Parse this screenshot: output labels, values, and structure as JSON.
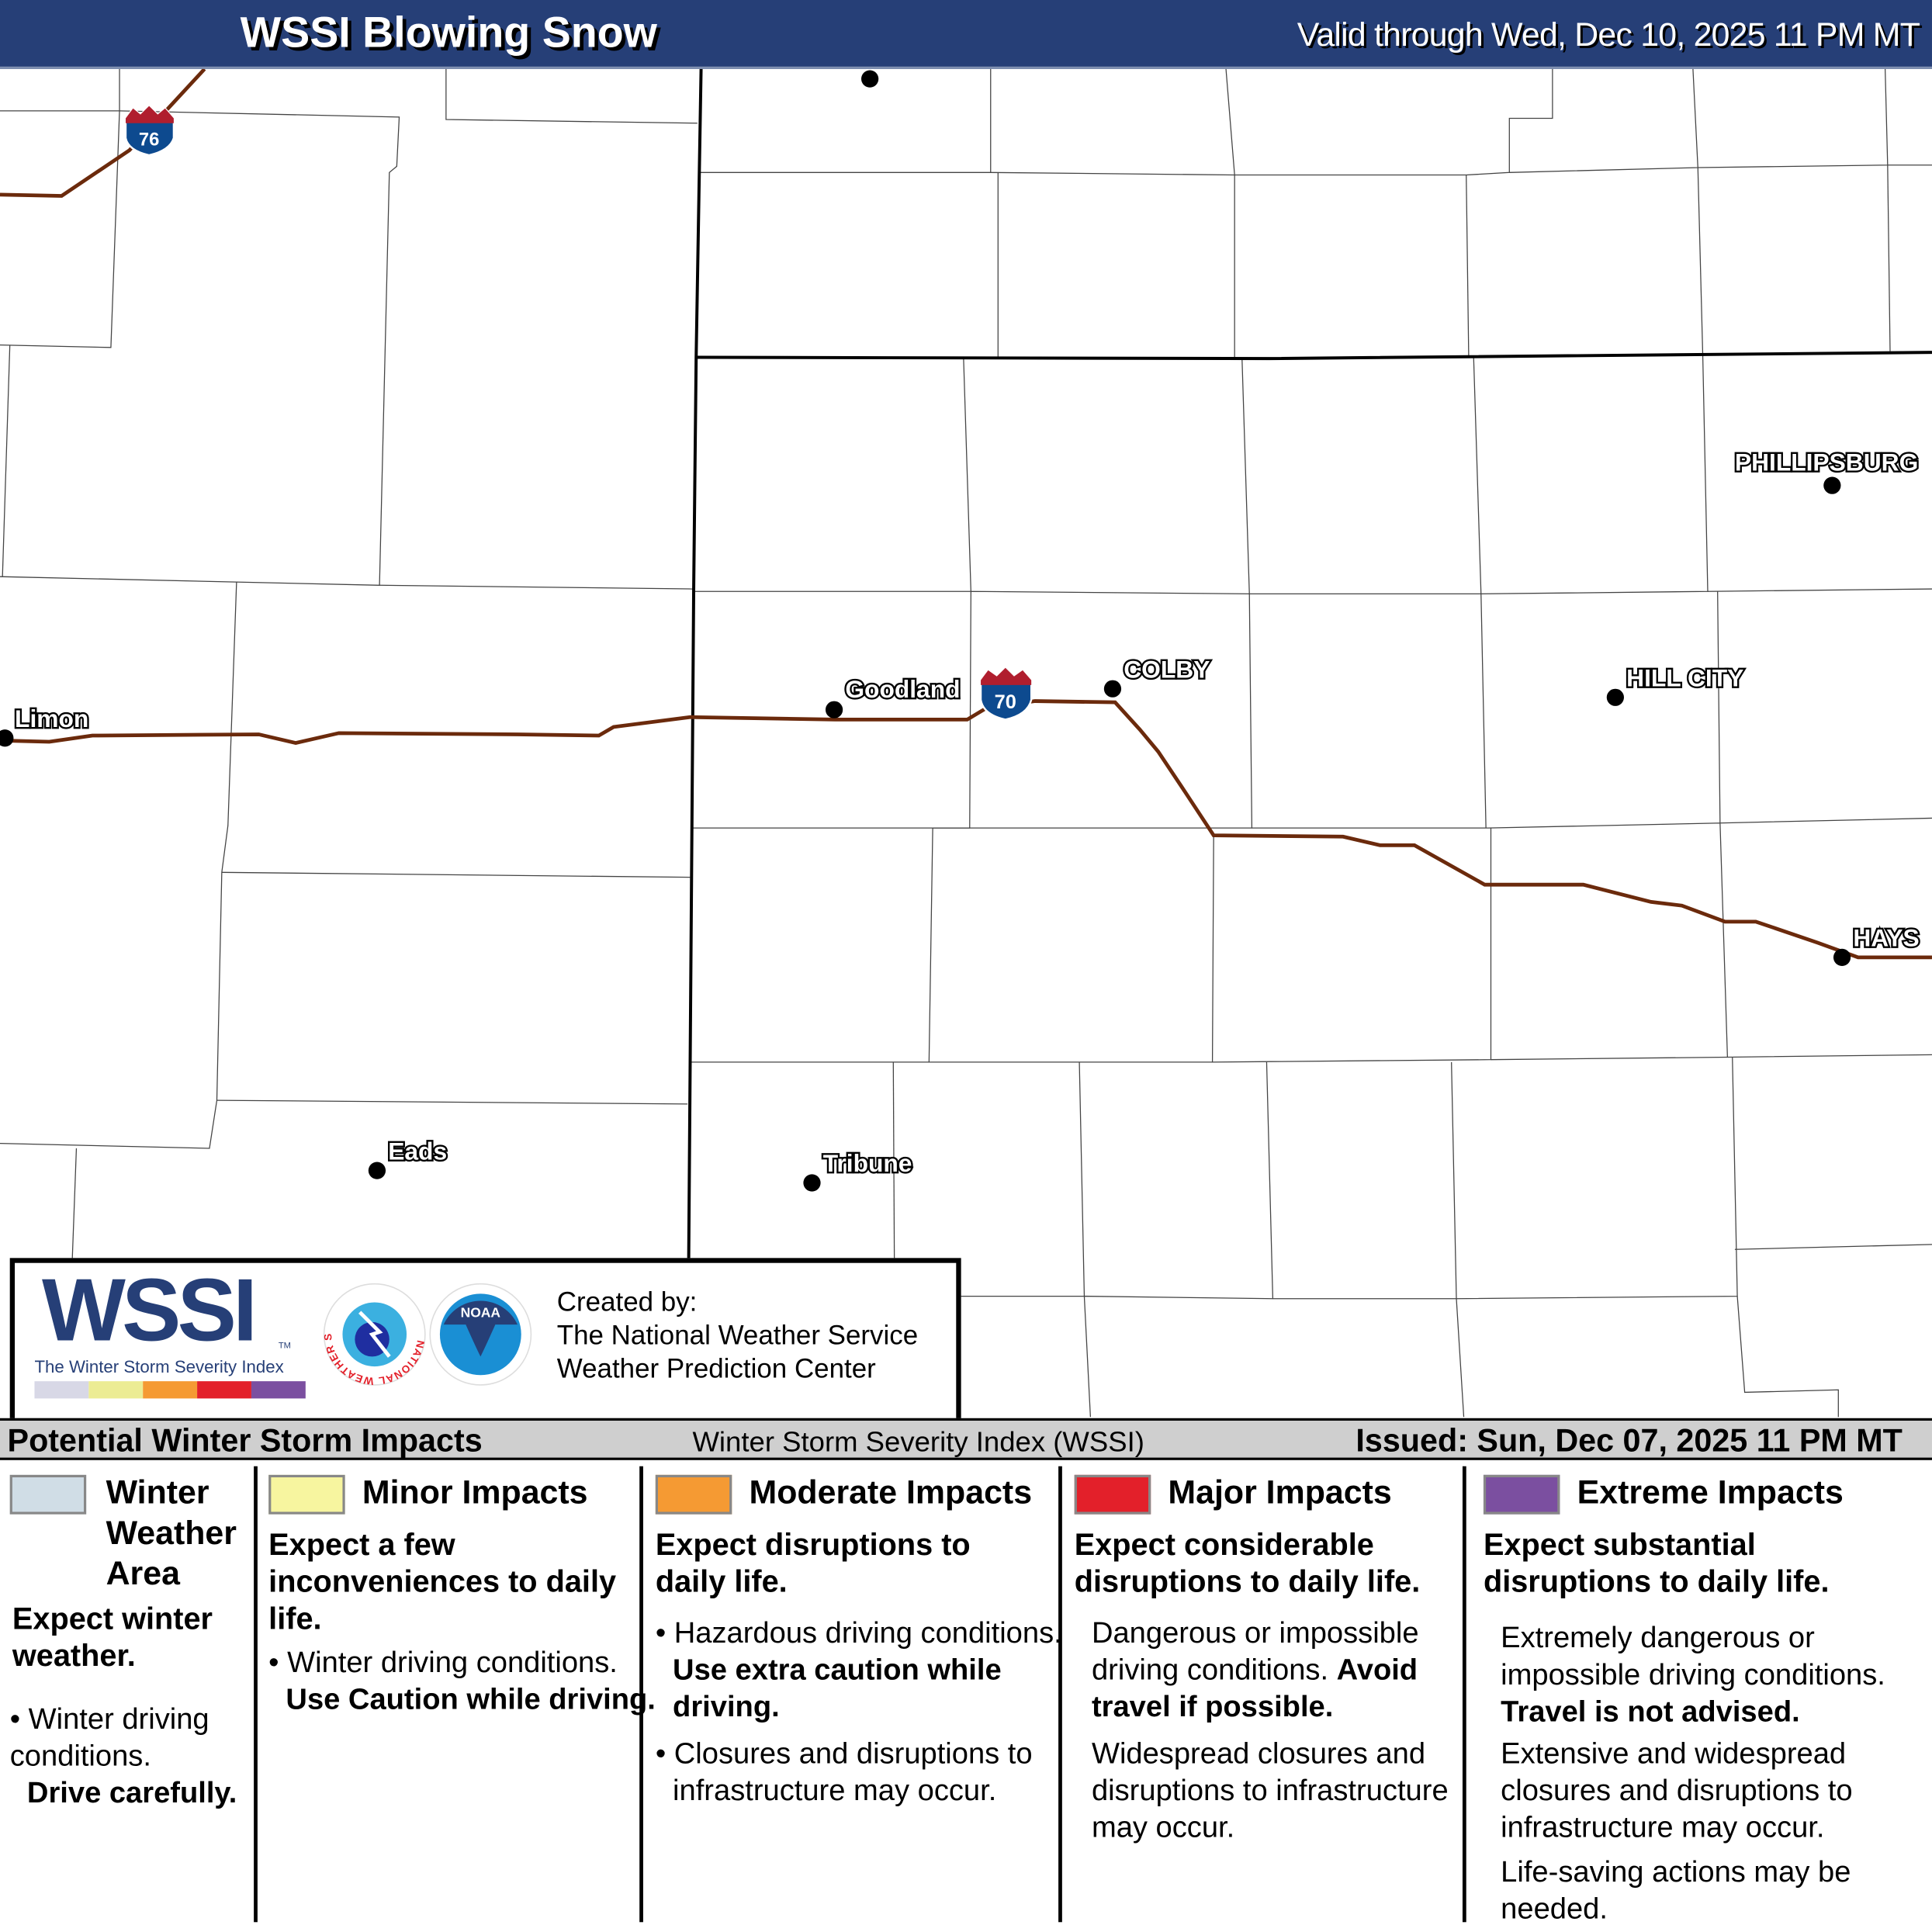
{
  "header": {
    "title": "WSSI Blowing Snow",
    "valid": "Valid through Wed, Dec 10, 2025 11 PM MT"
  },
  "map": {
    "cities": [
      {
        "name": "Limon"
      },
      {
        "name": "Goodland"
      },
      {
        "name": "COLBY"
      },
      {
        "name": "HILL CITY"
      },
      {
        "name": "PHILLIPSBURG"
      },
      {
        "name": "HAYS"
      },
      {
        "name": "Eads"
      },
      {
        "name": "Tribune"
      }
    ],
    "interstates": [
      {
        "number": "76"
      },
      {
        "number": "70"
      }
    ],
    "colors": {
      "road": "#6b2a0c",
      "shield_blue": "#0d4a8f",
      "shield_red": "#b01e2e"
    }
  },
  "logo": {
    "wssi": "WSSI",
    "tm": "TM",
    "subtitle": "The Winter Storm Severity Index",
    "created_by": "Created by:",
    "org1": "The National Weather Service",
    "org2": "Weather Prediction Center",
    "nws": "NATIONAL WEATHER SERVICE",
    "noaa": "NOAA"
  },
  "strip": {
    "left": "Potential Winter Storm Impacts",
    "center": "Winter Storm Severity Index (WSSI)",
    "issued": "Issued: Sun, Dec 07, 2025 11 PM MT"
  },
  "legend": [
    {
      "title": "Winter Weather Area",
      "color": "#d0dde6",
      "summary": "Expect winter weather.",
      "b1": "Winter driving conditions.",
      "b1_bold": "Drive carefully."
    },
    {
      "title": "Minor Impacts",
      "color": "#f7f59f",
      "summary": "Expect a few inconveniences to daily life.",
      "b1": "Winter driving conditions.",
      "b1_bold": "Use Caution while driving."
    },
    {
      "title": "Moderate Impacts",
      "color": "#f59a33",
      "summary": "Expect disruptions to daily life.",
      "b1": "Hazardous driving conditions.",
      "b1_bold": "Use extra caution while driving.",
      "b2": "Closures and disruptions to infrastructure may occur."
    },
    {
      "title": "Major Impacts",
      "color": "#e3202a",
      "summary": "Expect considerable disruptions to daily life.",
      "b1": "Dangerous or impossible driving conditions.",
      "b1_bold": "Avoid travel if possible.",
      "b2": "Widespread closures and disruptions to infrastructure may occur."
    },
    {
      "title": "Extreme Impacts",
      "color": "#7b4fa0",
      "summary": "Expect substantial disruptions to daily life.",
      "b1": "Extremely dangerous or impossible driving conditions.",
      "b1_bold": "Travel is not advised.",
      "b2": "Extensive and widespread closures and disruptions to infrastructure may occur.",
      "b3": "Life-saving actions may be needed."
    }
  ]
}
